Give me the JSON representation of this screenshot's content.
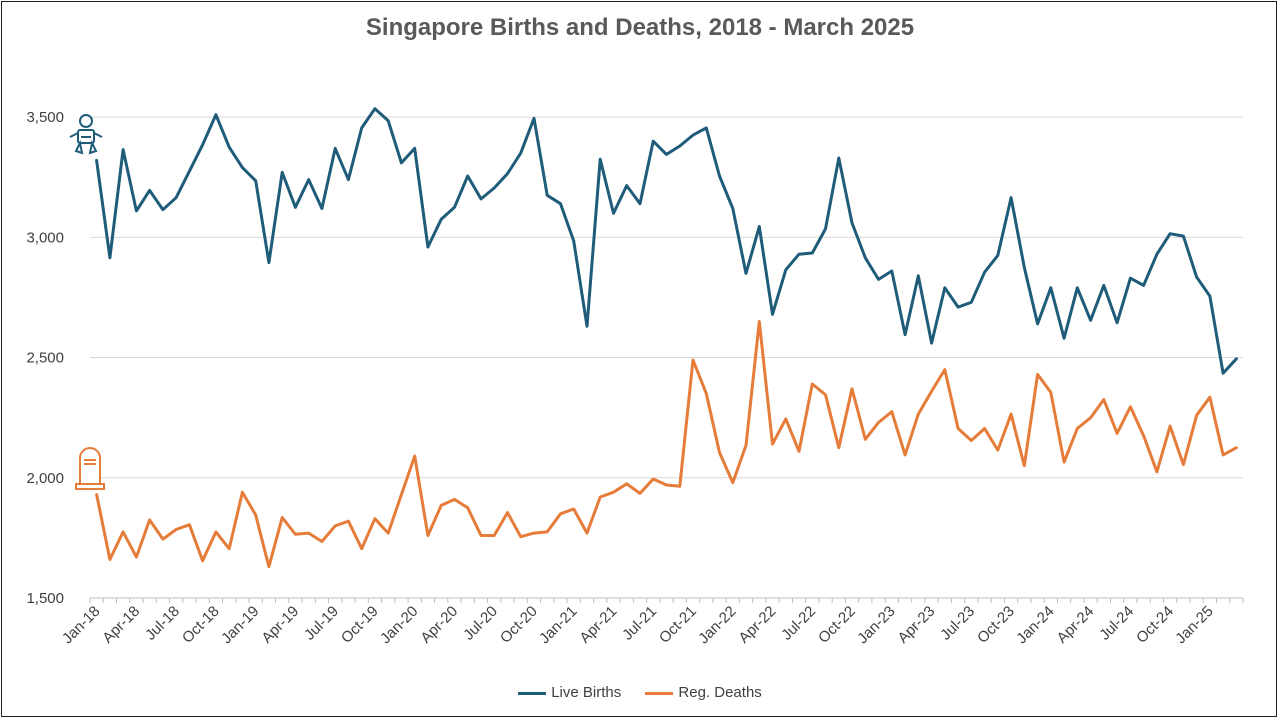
{
  "chart_data": {
    "type": "line",
    "title": "Singapore Births and Deaths, 2018 - March 2025",
    "xlabel": "",
    "ylabel": "",
    "ylim": [
      1500,
      3750
    ],
    "yticks": [
      "1,500",
      "2,000",
      "2,500",
      "3,000",
      "3,500"
    ],
    "ytick_values": [
      1500,
      2000,
      2500,
      3000,
      3500
    ],
    "xtick_labels": [
      "Jan-18",
      "Apr-18",
      "Jul-18",
      "Oct-18",
      "Jan-19",
      "Apr-19",
      "Jul-19",
      "Oct-19",
      "Jan-20",
      "Apr-20",
      "Jul-20",
      "Oct-20",
      "Jan-21",
      "Apr-21",
      "Jul-21",
      "Oct-21",
      "Jan-22",
      "Apr-22",
      "Jul-22",
      "Oct-22",
      "Jan-23",
      "Apr-23",
      "Jul-23",
      "Oct-23",
      "Jan-24",
      "Apr-24",
      "Jul-24",
      "Oct-24",
      "Jan-25"
    ],
    "grid": true,
    "legend_position": "bottom",
    "series": [
      {
        "name": "Live Births",
        "color": "#1f5c7a",
        "icon": "baby-icon",
        "values": [
          3320,
          2915,
          3365,
          3110,
          3195,
          3115,
          3165,
          3275,
          3385,
          3510,
          3375,
          3290,
          3235,
          2895,
          3270,
          3125,
          3240,
          3120,
          3370,
          3240,
          3455,
          3535,
          3485,
          3310,
          3370,
          2960,
          3075,
          3125,
          3255,
          3160,
          3205,
          3265,
          3350,
          3495,
          3175,
          3140,
          2985,
          2630,
          3325,
          3100,
          3215,
          3140,
          3400,
          3345,
          3380,
          3425,
          3455,
          3255,
          3120,
          2850,
          3045,
          2680,
          2865,
          2930,
          2935,
          3035,
          3330,
          3060,
          2915,
          2825,
          2860,
          2595,
          2840,
          2560,
          2790,
          2710,
          2730,
          2855,
          2925,
          3165,
          2875,
          2640,
          2790,
          2580,
          2790,
          2655,
          2800,
          2645,
          2830,
          2800,
          2930,
          3015,
          3005,
          2835,
          2755,
          2435,
          2495
        ]
      },
      {
        "name": "Reg. Deaths",
        "color": "#e57c3a",
        "icon": "tombstone-icon",
        "values": [
          1930,
          1660,
          1775,
          1670,
          1825,
          1745,
          1785,
          1805,
          1655,
          1775,
          1705,
          1940,
          1845,
          1630,
          1835,
          1765,
          1770,
          1735,
          1800,
          1820,
          1705,
          1830,
          1770,
          1930,
          2090,
          1760,
          1885,
          1910,
          1875,
          1760,
          1760,
          1855,
          1755,
          1770,
          1775,
          1850,
          1870,
          1770,
          1920,
          1940,
          1975,
          1935,
          1995,
          1970,
          1965,
          2490,
          2350,
          2105,
          1980,
          2135,
          2650,
          2140,
          2245,
          2110,
          2390,
          2345,
          2125,
          2370,
          2160,
          2230,
          2275,
          2095,
          2265,
          2360,
          2450,
          2205,
          2155,
          2205,
          2115,
          2265,
          2050,
          2430,
          2355,
          2065,
          2205,
          2250,
          2325,
          2185,
          2295,
          2175,
          2025,
          2215,
          2055,
          2260,
          2335,
          2095,
          2125
        ]
      }
    ]
  }
}
